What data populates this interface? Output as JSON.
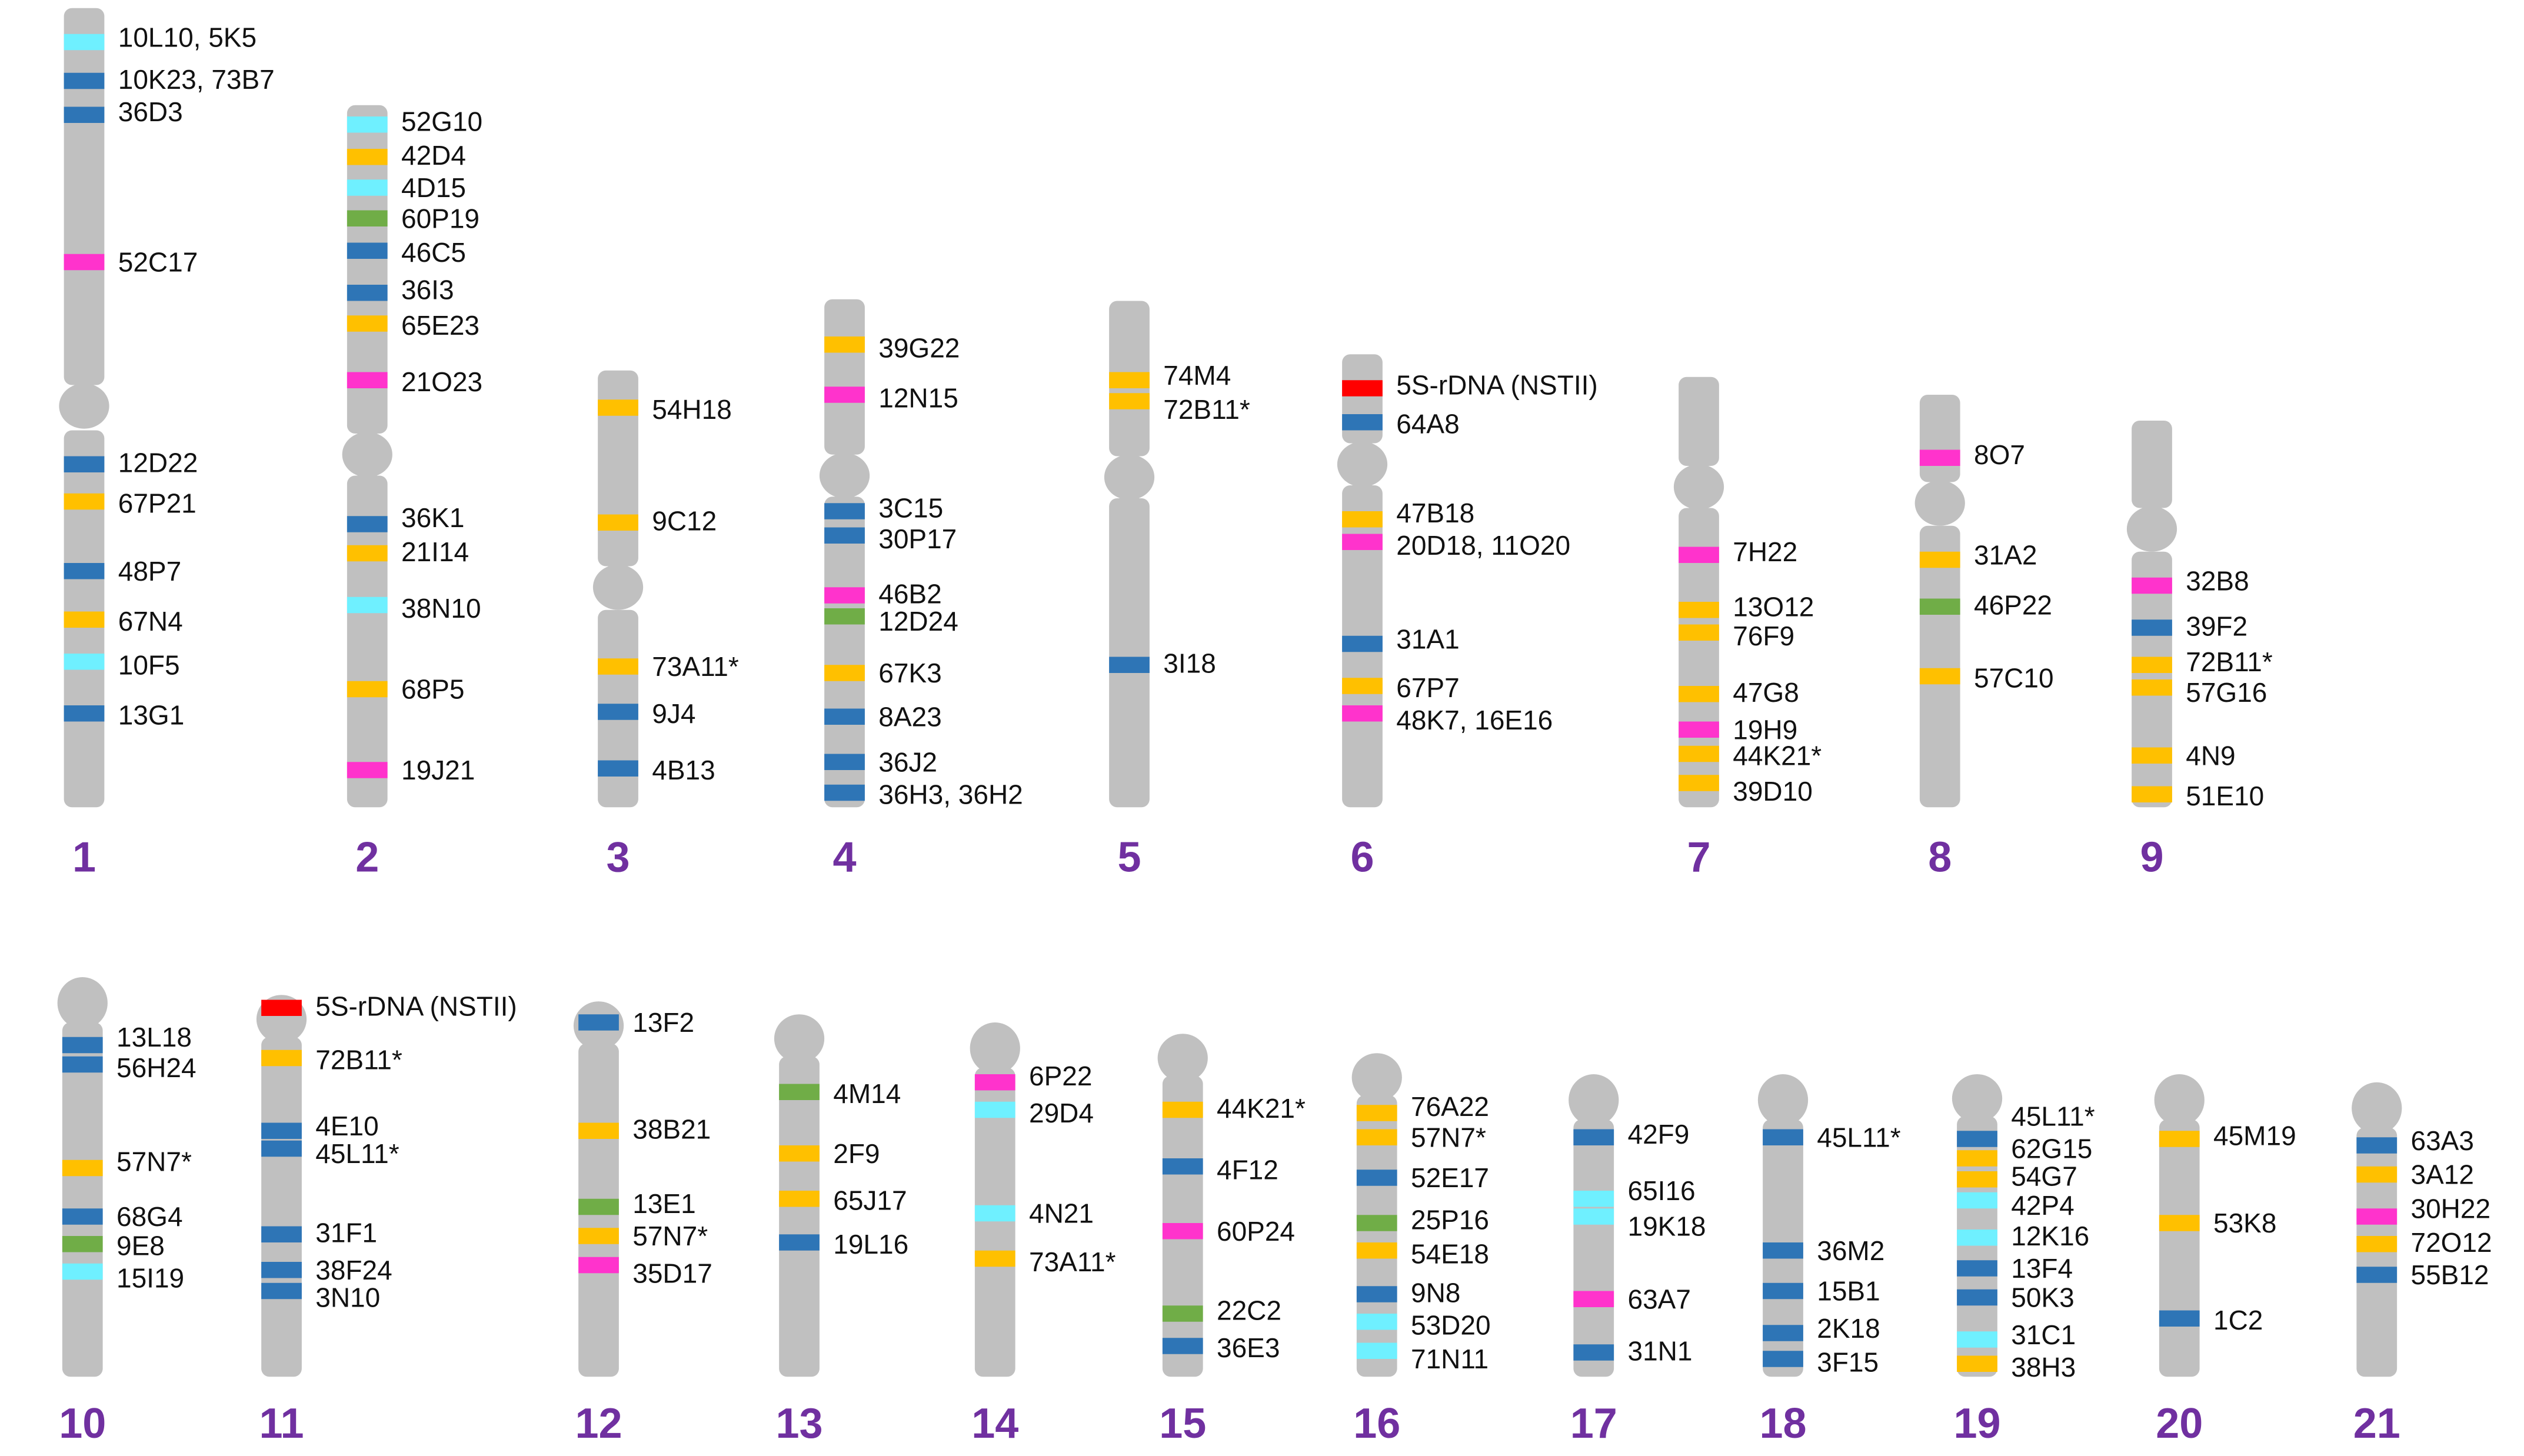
{
  "colors": {
    "chromosome": "#c0c0c0",
    "number": "#7030a0",
    "band": {
      "blue": "#2e75b6",
      "cyan": "#6ff0ff",
      "orange": "#ffc000",
      "magenta": "#ff33cc",
      "green": "#70ad47",
      "red": "#ff0000"
    }
  },
  "chromosomes": [
    {
      "number": "1",
      "bands": [
        {
          "label": "10L10, 5K5",
          "color": "cyan"
        },
        {
          "label": "10K23, 73B7",
          "color": "blue"
        },
        {
          "label": "36D3",
          "color": "blue"
        },
        {
          "label": "52C17",
          "color": "magenta"
        },
        {
          "label": "12D22",
          "color": "blue"
        },
        {
          "label": "67P21",
          "color": "orange"
        },
        {
          "label": "48P7",
          "color": "blue"
        },
        {
          "label": "67N4",
          "color": "orange"
        },
        {
          "label": "10F5",
          "color": "cyan"
        },
        {
          "label": "13G1",
          "color": "blue"
        }
      ]
    },
    {
      "number": "2",
      "bands": [
        {
          "label": "52G10",
          "color": "cyan"
        },
        {
          "label": "42D4",
          "color": "orange"
        },
        {
          "label": "4D15",
          "color": "cyan"
        },
        {
          "label": "60P19",
          "color": "green"
        },
        {
          "label": "46C5",
          "color": "blue"
        },
        {
          "label": "36I3",
          "color": "blue"
        },
        {
          "label": "65E23",
          "color": "orange"
        },
        {
          "label": "21O23",
          "color": "magenta"
        },
        {
          "label": "36K1",
          "color": "blue"
        },
        {
          "label": "21I14",
          "color": "orange"
        },
        {
          "label": "38N10",
          "color": "cyan"
        },
        {
          "label": "68P5",
          "color": "orange"
        },
        {
          "label": "19J21",
          "color": "magenta"
        }
      ]
    },
    {
      "number": "3",
      "bands": [
        {
          "label": "54H18",
          "color": "orange"
        },
        {
          "label": "9C12",
          "color": "orange"
        },
        {
          "label": "73A11*",
          "color": "orange"
        },
        {
          "label": "9J4",
          "color": "blue"
        },
        {
          "label": "4B13",
          "color": "blue"
        }
      ]
    },
    {
      "number": "4",
      "bands": [
        {
          "label": "39G22",
          "color": "orange"
        },
        {
          "label": "12N15",
          "color": "magenta"
        },
        {
          "label": "3C15",
          "color": "blue"
        },
        {
          "label": "30P17",
          "color": "blue"
        },
        {
          "label": "46B2",
          "color": "magenta"
        },
        {
          "label": "12D24",
          "color": "green"
        },
        {
          "label": "67K3",
          "color": "orange"
        },
        {
          "label": "8A23",
          "color": "blue"
        },
        {
          "label": "36J2",
          "color": "blue"
        },
        {
          "label": "36H3, 36H2",
          "color": "blue"
        }
      ]
    },
    {
      "number": "5",
      "bands": [
        {
          "label": "74M4",
          "color": "orange"
        },
        {
          "label": "72B11*",
          "color": "orange"
        },
        {
          "label": "3I18",
          "color": "blue"
        }
      ]
    },
    {
      "number": "6",
      "bands": [
        {
          "label": "5S-rDNA (NSTII)",
          "color": "red"
        },
        {
          "label": "64A8",
          "color": "blue"
        },
        {
          "label": "47B18",
          "color": "orange"
        },
        {
          "label": "20D18, 11O20",
          "color": "magenta"
        },
        {
          "label": "31A1",
          "color": "blue"
        },
        {
          "label": "67P7",
          "color": "orange"
        },
        {
          "label": "48K7, 16E16",
          "color": "magenta"
        }
      ]
    },
    {
      "number": "7",
      "bands": [
        {
          "label": "7H22",
          "color": "magenta"
        },
        {
          "label": "13O12",
          "color": "orange"
        },
        {
          "label": "76F9",
          "color": "orange"
        },
        {
          "label": "47G8",
          "color": "orange"
        },
        {
          "label": "19H9",
          "color": "magenta"
        },
        {
          "label": "44K21*",
          "color": "orange"
        },
        {
          "label": "39D10",
          "color": "orange"
        }
      ]
    },
    {
      "number": "8",
      "bands": [
        {
          "label": "8O7",
          "color": "magenta"
        },
        {
          "label": "31A2",
          "color": "orange"
        },
        {
          "label": "46P22",
          "color": "green"
        },
        {
          "label": "57C10",
          "color": "orange"
        }
      ]
    },
    {
      "number": "9",
      "bands": [
        {
          "label": "32B8",
          "color": "magenta"
        },
        {
          "label": "39F2",
          "color": "blue"
        },
        {
          "label": "72B11*",
          "color": "orange"
        },
        {
          "label": "57G16",
          "color": "orange"
        },
        {
          "label": "4N9",
          "color": "orange"
        },
        {
          "label": "51E10",
          "color": "orange"
        }
      ]
    },
    {
      "number": "10",
      "bands": [
        {
          "label": "13L18",
          "color": "blue"
        },
        {
          "label": "56H24",
          "color": "blue"
        },
        {
          "label": "57N7*",
          "color": "orange"
        },
        {
          "label": "68G4",
          "color": "blue"
        },
        {
          "label": "9E8",
          "color": "green"
        },
        {
          "label": "15I19",
          "color": "cyan"
        }
      ]
    },
    {
      "number": "11",
      "bands": [
        {
          "label": "5S-rDNA (NSTII)",
          "color": "red"
        },
        {
          "label": "72B11*",
          "color": "orange"
        },
        {
          "label": "4E10",
          "color": "blue"
        },
        {
          "label": "45L11*",
          "color": "blue"
        },
        {
          "label": "31F1",
          "color": "blue"
        },
        {
          "label": "38F24",
          "color": "blue"
        },
        {
          "label": "3N10",
          "color": "blue"
        }
      ]
    },
    {
      "number": "12",
      "bands": [
        {
          "label": "13F2",
          "color": "blue"
        },
        {
          "label": "38B21",
          "color": "orange"
        },
        {
          "label": "13E1",
          "color": "green"
        },
        {
          "label": "57N7*",
          "color": "orange"
        },
        {
          "label": "35D17",
          "color": "magenta"
        }
      ]
    },
    {
      "number": "13",
      "bands": [
        {
          "label": "4M14",
          "color": "green"
        },
        {
          "label": "2F9",
          "color": "orange"
        },
        {
          "label": "65J17",
          "color": "orange"
        },
        {
          "label": "19L16",
          "color": "blue"
        }
      ]
    },
    {
      "number": "14",
      "bands": [
        {
          "label": "6P22",
          "color": "magenta"
        },
        {
          "label": "29D4",
          "color": "cyan"
        },
        {
          "label": "4N21",
          "color": "cyan"
        },
        {
          "label": "73A11*",
          "color": "orange"
        }
      ]
    },
    {
      "number": "15",
      "bands": [
        {
          "label": "44K21*",
          "color": "orange"
        },
        {
          "label": "4F12",
          "color": "blue"
        },
        {
          "label": "60P24",
          "color": "magenta"
        },
        {
          "label": "22C2",
          "color": "green"
        },
        {
          "label": "36E3",
          "color": "blue"
        }
      ]
    },
    {
      "number": "16",
      "bands": [
        {
          "label": "76A22",
          "color": "orange"
        },
        {
          "label": "57N7*",
          "color": "orange"
        },
        {
          "label": "52E17",
          "color": "blue"
        },
        {
          "label": "25P16",
          "color": "green"
        },
        {
          "label": "54E18",
          "color": "orange"
        },
        {
          "label": "9N8",
          "color": "blue"
        },
        {
          "label": "53D20",
          "color": "cyan"
        },
        {
          "label": "71N11",
          "color": "cyan"
        }
      ]
    },
    {
      "number": "17",
      "bands": [
        {
          "label": "42F9",
          "color": "blue"
        },
        {
          "label": "65I16",
          "color": "cyan"
        },
        {
          "label": "19K18",
          "color": "cyan"
        },
        {
          "label": "63A7",
          "color": "magenta"
        },
        {
          "label": "31N1",
          "color": "blue"
        }
      ]
    },
    {
      "number": "18",
      "bands": [
        {
          "label": "45L11*",
          "color": "blue"
        },
        {
          "label": "36M2",
          "color": "blue"
        },
        {
          "label": "15B1",
          "color": "blue"
        },
        {
          "label": "2K18",
          "color": "blue"
        },
        {
          "label": "3F15",
          "color": "blue"
        }
      ]
    },
    {
      "number": "19",
      "bands": [
        {
          "label": "45L11*",
          "color": "blue"
        },
        {
          "label": "62G15",
          "color": "orange"
        },
        {
          "label": "54G7",
          "color": "orange"
        },
        {
          "label": "42P4",
          "color": "cyan"
        },
        {
          "label": "12K16",
          "color": "cyan"
        },
        {
          "label": "13F4",
          "color": "blue"
        },
        {
          "label": "50K3",
          "color": "blue"
        },
        {
          "label": "31C1",
          "color": "cyan"
        },
        {
          "label": "38H3",
          "color": "orange"
        }
      ]
    },
    {
      "number": "20",
      "bands": [
        {
          "label": "45M19",
          "color": "orange"
        },
        {
          "label": "53K8",
          "color": "orange"
        },
        {
          "label": "1C2",
          "color": "blue"
        }
      ]
    },
    {
      "number": "21",
      "bands": [
        {
          "label": "63A3",
          "color": "blue"
        },
        {
          "label": "3A12",
          "color": "orange"
        },
        {
          "label": "30H22",
          "color": "magenta"
        },
        {
          "label": "72O12",
          "color": "orange"
        },
        {
          "label": "55B12",
          "color": "blue"
        }
      ]
    }
  ]
}
